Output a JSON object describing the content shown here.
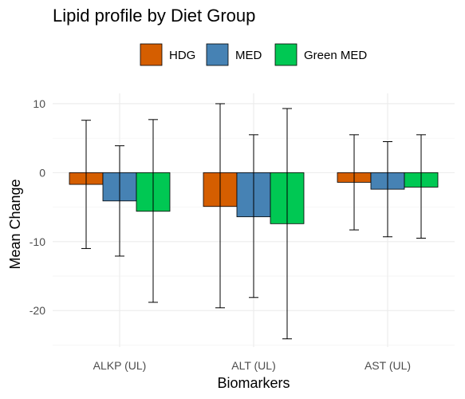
{
  "chart_data": {
    "type": "bar",
    "title": "Lipid profile by Diet Group",
    "xlabel": "Biomarkers",
    "ylabel": "Mean Change",
    "categories": [
      "ALKP (UL)",
      "ALT (UL)",
      "AST (UL)"
    ],
    "ylim": [
      -25.3,
      11.5
    ],
    "yticks": [
      -20,
      -10,
      0,
      10
    ],
    "grid": true,
    "legend": "top",
    "series": [
      {
        "name": "HDG",
        "color": "#D55E00",
        "values": [
          -1.7,
          -4.9,
          -1.4
        ],
        "err_low": [
          -11.0,
          -19.6,
          -8.3
        ],
        "err_high": [
          7.6,
          10.0,
          5.5
        ]
      },
      {
        "name": "MED",
        "color": "#4682B4",
        "values": [
          -4.1,
          -6.4,
          -2.4
        ],
        "err_low": [
          -12.1,
          -18.1,
          -9.3
        ],
        "err_high": [
          3.9,
          5.5,
          4.5
        ]
      },
      {
        "name": "Green MED",
        "color": "#00C853",
        "values": [
          -5.6,
          -7.4,
          -2.1
        ],
        "err_low": [
          -18.8,
          -24.1,
          -9.5
        ],
        "err_high": [
          7.7,
          9.3,
          5.5
        ]
      }
    ]
  }
}
